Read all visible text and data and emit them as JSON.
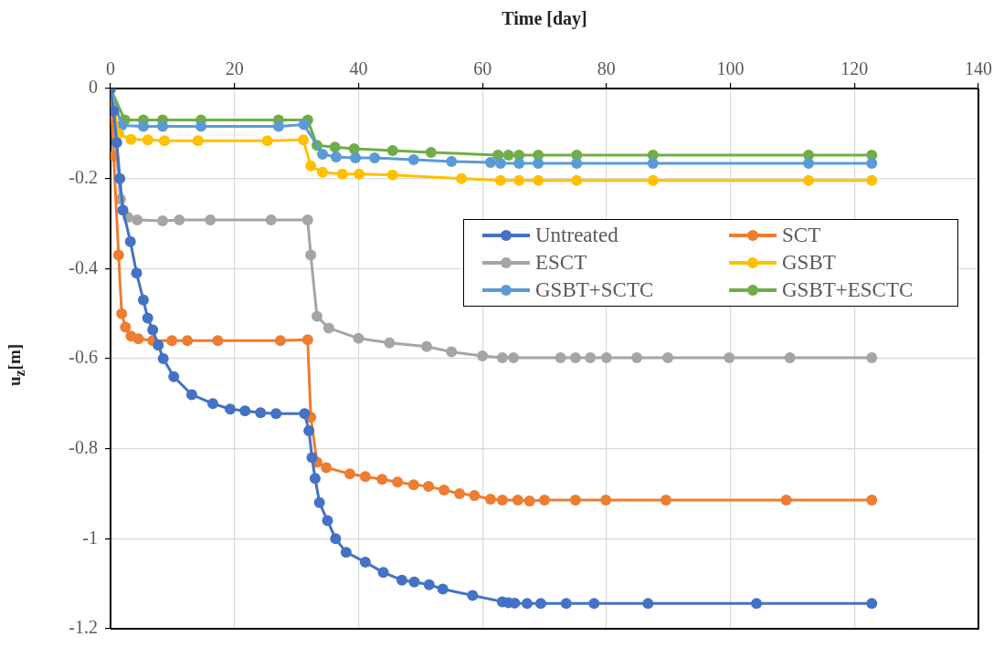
{
  "chart_data": {
    "type": "line",
    "xlabel": "Time [day]",
    "ylabel": "u$_{z}$[m]",
    "xlim": [
      0,
      140
    ],
    "xticks": [
      0,
      20,
      40,
      60,
      80,
      100,
      120,
      140
    ],
    "ylim": [
      -1.2,
      0
    ],
    "yticks": [
      -1.2,
      -1,
      -0.8,
      -0.6,
      -0.4,
      -0.2,
      0
    ],
    "grid": true,
    "legend": "top right",
    "marker": "circle",
    "line_style": "solid",
    "series": [
      {
        "name": "Untreated",
        "color": "#4472c4",
        "x": [
          0,
          0.5,
          1,
          1.5,
          2,
          3.2,
          4.2,
          5.3,
          6,
          6.8,
          7.7,
          8.5,
          10.2,
          13.1,
          16.5,
          19.3,
          21.7,
          24.2,
          26.7,
          31.3,
          32,
          32.5,
          33,
          33.7,
          35,
          36.3,
          38,
          41.1,
          44,
          47,
          49,
          51.4,
          53.6,
          58.4,
          63.2,
          64.2,
          65.2,
          67.2,
          69.4,
          73.5,
          78,
          86.7,
          104.2,
          122.8
        ],
        "values": [
          0,
          -0.05,
          -0.12,
          -0.2,
          -0.27,
          -0.34,
          -0.41,
          -0.47,
          -0.51,
          -0.536,
          -0.57,
          -0.6,
          -0.64,
          -0.68,
          -0.7,
          -0.712,
          -0.716,
          -0.72,
          -0.722,
          -0.722,
          -0.76,
          -0.82,
          -0.866,
          -0.92,
          -0.96,
          -1,
          -1.03,
          -1.052,
          -1.075,
          -1.092,
          -1.096,
          -1.102,
          -1.112,
          -1.126,
          -1.14,
          -1.142,
          -1.143,
          -1.144,
          -1.144,
          -1.144,
          -1.144,
          -1.144,
          -1.144,
          -1.144
        ]
      },
      {
        "name": "SCT",
        "color": "#ed7d31",
        "x": [
          0,
          0.5,
          1.3,
          1.8,
          2.4,
          3.3,
          4.5,
          6.8,
          9.9,
          12.4,
          17.3,
          27.4,
          31.8,
          32.3,
          33.3,
          34.8,
          38.6,
          41.1,
          43.8,
          46.3,
          48.9,
          51.3,
          53.8,
          56.3,
          58.7,
          61.3,
          63.2,
          65.7,
          67.6,
          70,
          75,
          79.9,
          89.6,
          109,
          122.8
        ],
        "values": [
          0,
          -0.15,
          -0.37,
          -0.5,
          -0.53,
          -0.55,
          -0.556,
          -0.56,
          -0.56,
          -0.56,
          -0.56,
          -0.56,
          -0.558,
          -0.73,
          -0.83,
          -0.842,
          -0.856,
          -0.862,
          -0.868,
          -0.874,
          -0.88,
          -0.884,
          -0.892,
          -0.9,
          -0.904,
          -0.912,
          -0.914,
          -0.914,
          -0.916,
          -0.914,
          -0.914,
          -0.914,
          -0.914,
          -0.914,
          -0.914
        ]
      },
      {
        "name": "ESCT",
        "color": "#a5a5a5",
        "x": [
          0,
          1.6,
          2.8,
          4.3,
          8.4,
          11.1,
          16.1,
          25.9,
          31.8,
          32.3,
          33.3,
          35.2,
          40,
          45,
          51,
          55,
          60,
          63.2,
          65,
          72.6,
          75,
          77.4,
          80,
          84.9,
          89.9,
          99.8,
          109.6,
          122.8
        ],
        "values": [
          0,
          -0.246,
          -0.286,
          -0.292,
          -0.294,
          -0.292,
          -0.292,
          -0.292,
          -0.292,
          -0.37,
          -0.506,
          -0.532,
          -0.555,
          -0.565,
          -0.573,
          -0.585,
          -0.594,
          -0.598,
          -0.598,
          -0.598,
          -0.598,
          -0.598,
          -0.598,
          -0.598,
          -0.598,
          -0.598,
          -0.598,
          -0.598
        ]
      },
      {
        "name": "GSBT",
        "color": "#ffc000",
        "x": [
          0,
          1.3,
          3.3,
          6,
          8.7,
          14.1,
          25.3,
          31.1,
          32.3,
          34.2,
          37.4,
          40.1,
          45.5,
          56.6,
          62.9,
          65.9,
          69,
          75.2,
          87.5,
          112.6,
          122.8
        ],
        "values": [
          0,
          -0.1,
          -0.113,
          -0.114,
          -0.116,
          -0.116,
          -0.116,
          -0.114,
          -0.172,
          -0.186,
          -0.19,
          -0.19,
          -0.192,
          -0.2,
          -0.204,
          -0.204,
          -0.204,
          -0.204,
          -0.204,
          -0.204,
          -0.204
        ]
      },
      {
        "name": "GSBT+SCTC",
        "color": "#5b9bd5",
        "x": [
          0,
          1.8,
          5.3,
          8.4,
          14.6,
          27.1,
          31.2,
          34.2,
          36.4,
          39.5,
          42.6,
          48.9,
          55,
          61.3,
          62.9,
          65.9,
          69,
          75.2,
          87.5,
          112.6,
          122.8
        ],
        "values": [
          0,
          -0.082,
          -0.084,
          -0.084,
          -0.084,
          -0.084,
          -0.08,
          -0.146,
          -0.152,
          -0.154,
          -0.154,
          -0.158,
          -0.162,
          -0.164,
          -0.166,
          -0.166,
          -0.166,
          -0.166,
          -0.166,
          -0.166,
          -0.166
        ]
      },
      {
        "name": "GSBT+ESCTC",
        "color": "#70ad47",
        "x": [
          0,
          2.3,
          5.3,
          8.4,
          14.6,
          27.1,
          31.8,
          33.3,
          36.2,
          39.3,
          45.5,
          51.7,
          62.5,
          64.2,
          65.9,
          69,
          75.2,
          87.5,
          112.6,
          122.8
        ],
        "values": [
          0,
          -0.07,
          -0.07,
          -0.07,
          -0.07,
          -0.07,
          -0.07,
          -0.126,
          -0.13,
          -0.134,
          -0.138,
          -0.142,
          -0.148,
          -0.148,
          -0.148,
          -0.148,
          -0.148,
          -0.148,
          -0.148,
          -0.148
        ]
      }
    ]
  }
}
